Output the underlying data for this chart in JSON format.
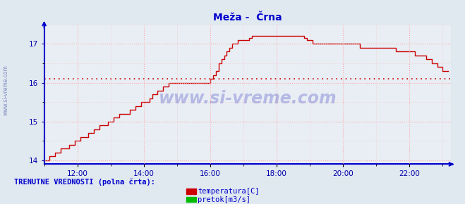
{
  "title": "Meža -  Črna",
  "title_color": "#0000cc",
  "bg_color": "#e0e8f0",
  "plot_bg_color": "#e8eef4",
  "grid_color": "#ffaaaa",
  "axis_color": "#0000cc",
  "tick_color": "#0000aa",
  "text_watermark": "www.si-vreme.com",
  "watermark_color": "#3333bb",
  "legend_title": "TRENUTNE VREDNOSTI (polna črta):",
  "legend_title_color": "#0000cc",
  "legend_items": [
    {
      "label": "temperatura[C]",
      "color": "#cc0000"
    },
    {
      "label": "pretok[m3/s]",
      "color": "#00bb00"
    }
  ],
  "xlim_start": 11.0,
  "xlim_end": 23.25,
  "ylim": [
    13.9,
    17.45
  ],
  "yticks": [
    14,
    15,
    16,
    17
  ],
  "xtick_labels": [
    "12:00",
    "14:00",
    "16:00",
    "18:00",
    "20:00",
    "22:00"
  ],
  "xtick_positions": [
    12,
    14,
    16,
    18,
    20,
    22
  ],
  "hline_y": 16.1,
  "hline_color": "#cc0000",
  "temp_color": "#cc0000",
  "temp_times": [
    11.0,
    11.083,
    11.167,
    11.25,
    11.333,
    11.417,
    11.5,
    11.583,
    11.667,
    11.75,
    11.833,
    11.917,
    12.0,
    12.083,
    12.167,
    12.25,
    12.333,
    12.417,
    12.5,
    12.583,
    12.667,
    12.75,
    12.833,
    12.917,
    13.0,
    13.083,
    13.167,
    13.25,
    13.333,
    13.417,
    13.5,
    13.583,
    13.667,
    13.75,
    13.833,
    13.917,
    14.0,
    14.083,
    14.167,
    14.25,
    14.333,
    14.417,
    14.5,
    14.583,
    14.667,
    14.75,
    14.833,
    14.917,
    15.0,
    15.083,
    15.167,
    15.25,
    15.333,
    15.417,
    15.5,
    15.583,
    15.667,
    15.75,
    15.833,
    15.917,
    16.0,
    16.083,
    16.167,
    16.25,
    16.333,
    16.417,
    16.5,
    16.583,
    16.667,
    16.75,
    16.833,
    16.917,
    17.0,
    17.083,
    17.167,
    17.25,
    17.333,
    17.417,
    17.5,
    17.583,
    17.667,
    17.75,
    17.833,
    17.917,
    18.0,
    18.083,
    18.167,
    18.25,
    18.333,
    18.417,
    18.5,
    18.583,
    18.667,
    18.75,
    18.833,
    18.917,
    19.0,
    19.083,
    19.167,
    19.25,
    19.333,
    19.417,
    19.5,
    19.583,
    19.667,
    19.75,
    19.833,
    19.917,
    20.0,
    20.083,
    20.167,
    20.25,
    20.333,
    20.417,
    20.5,
    20.583,
    20.667,
    20.75,
    20.833,
    20.917,
    21.0,
    21.083,
    21.167,
    21.25,
    21.333,
    21.417,
    21.5,
    21.583,
    21.667,
    21.75,
    21.833,
    21.917,
    22.0,
    22.083,
    22.167,
    22.25,
    22.333,
    22.417,
    22.5,
    22.583,
    22.667,
    22.75,
    22.833,
    22.917,
    23.0,
    23.083,
    23.167
  ],
  "temp_data": [
    14.0,
    14.0,
    14.1,
    14.1,
    14.2,
    14.2,
    14.3,
    14.3,
    14.3,
    14.4,
    14.4,
    14.5,
    14.5,
    14.6,
    14.6,
    14.6,
    14.7,
    14.7,
    14.8,
    14.8,
    14.9,
    14.9,
    14.9,
    15.0,
    15.0,
    15.1,
    15.1,
    15.2,
    15.2,
    15.2,
    15.2,
    15.3,
    15.3,
    15.4,
    15.4,
    15.5,
    15.5,
    15.5,
    15.6,
    15.7,
    15.7,
    15.8,
    15.8,
    15.9,
    15.9,
    16.0,
    16.0,
    16.0,
    16.0,
    16.0,
    16.0,
    16.0,
    16.0,
    16.0,
    16.0,
    16.0,
    16.0,
    16.0,
    16.0,
    16.0,
    16.1,
    16.2,
    16.3,
    16.5,
    16.6,
    16.7,
    16.8,
    16.9,
    17.0,
    17.0,
    17.1,
    17.1,
    17.1,
    17.1,
    17.15,
    17.2,
    17.2,
    17.2,
    17.2,
    17.2,
    17.2,
    17.2,
    17.2,
    17.2,
    17.2,
    17.2,
    17.2,
    17.2,
    17.2,
    17.2,
    17.2,
    17.2,
    17.2,
    17.2,
    17.15,
    17.1,
    17.1,
    17.0,
    17.0,
    17.0,
    17.0,
    17.0,
    17.0,
    17.0,
    17.0,
    17.0,
    17.0,
    17.0,
    17.0,
    17.0,
    17.0,
    17.0,
    17.0,
    17.0,
    16.9,
    16.9,
    16.9,
    16.9,
    16.9,
    16.9,
    16.9,
    16.9,
    16.9,
    16.9,
    16.9,
    16.9,
    16.9,
    16.8,
    16.8,
    16.8,
    16.8,
    16.8,
    16.8,
    16.8,
    16.7,
    16.7,
    16.7,
    16.7,
    16.6,
    16.6,
    16.5,
    16.5,
    16.4,
    16.4,
    16.3,
    16.3,
    16.3
  ]
}
